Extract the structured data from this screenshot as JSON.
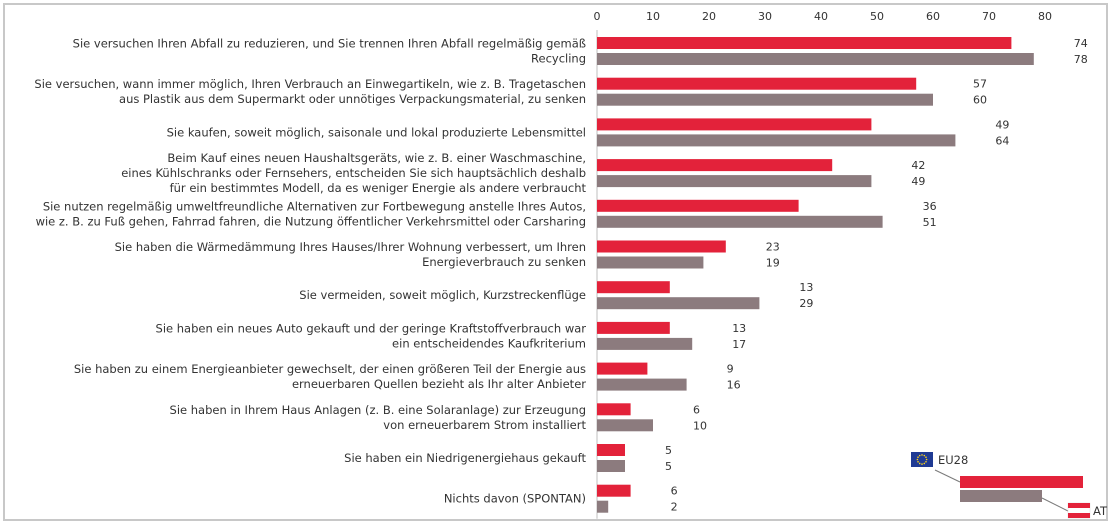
{
  "chart_data": {
    "type": "bar",
    "orientation": "horizontal",
    "xlim": [
      0,
      80
    ],
    "xticks": [
      0,
      10,
      20,
      30,
      40,
      50,
      60,
      70,
      80
    ],
    "grid": false,
    "series": [
      {
        "name": "EU28",
        "color": "#e3223a"
      },
      {
        "name": "AT",
        "color": "#8c7b7e"
      }
    ],
    "categories": [
      {
        "lines": [
          "Sie versuchen Ihren Abfall zu reduzieren, und Sie trennen Ihren Abfall regelmäßig gemäß",
          "Recycling"
        ],
        "values": [
          74,
          78
        ]
      },
      {
        "lines": [
          "Sie versuchen, wann immer möglich, Ihren Verbrauch an Einwegartikeln, wie z. B. Tragetaschen",
          "aus Plastik aus dem Supermarkt oder unnötiges Verpackungsmaterial, zu senken"
        ],
        "values": [
          57,
          60
        ]
      },
      {
        "lines": [
          "Sie kaufen, soweit möglich, saisonale und lokal produzierte Lebensmittel"
        ],
        "values": [
          49,
          64
        ]
      },
      {
        "lines": [
          "Beim Kauf eines neuen Haushaltsgeräts, wie z. B. einer Waschmaschine,",
          "eines Kühlschranks oder Fernsehers, entscheiden Sie sich hauptsächlich deshalb",
          "für ein bestimmtes Modell, da es weniger Energie als andere verbraucht"
        ],
        "values": [
          42,
          49
        ]
      },
      {
        "lines": [
          "Sie nutzen regelmäßig umweltfreundliche Alternativen zur Fortbewegung anstelle Ihres Autos,",
          "wie z. B. zu Fuß gehen, Fahrrad fahren, die Nutzung öffentlicher Verkehrsmittel oder Carsharing"
        ],
        "values": [
          36,
          51
        ]
      },
      {
        "lines": [
          "Sie haben die Wärmedämmung Ihres Hauses/Ihrer Wohnung verbessert, um Ihren",
          "Energieverbrauch zu senken"
        ],
        "values": [
          23,
          19
        ]
      },
      {
        "lines": [
          "Sie vermeiden, soweit möglich, Kurzstreckenflüge"
        ],
        "values": [
          13,
          29
        ]
      },
      {
        "lines": [
          "Sie haben ein neues Auto gekauft und der geringe Kraftstoffverbrauch war",
          "ein entscheidendes Kaufkriterium"
        ],
        "values": [
          13,
          17
        ]
      },
      {
        "lines": [
          "Sie haben zu einem Energieanbieter gewechselt, der einen größeren Teil der Energie aus",
          "erneuerbaren Quellen bezieht als Ihr alter Anbieter"
        ],
        "values": [
          9,
          16
        ]
      },
      {
        "lines": [
          "Sie haben in Ihrem Haus Anlagen (z. B. eine Solaranlage) zur Erzeugung",
          "von erneuerbarem Strom installiert"
        ],
        "values": [
          6,
          10
        ]
      },
      {
        "lines": [
          "Sie haben ein Niedrigenergiehaus gekauft"
        ],
        "values": [
          5,
          5
        ]
      },
      {
        "lines": [
          "Nichts davon (SPONTAN)"
        ],
        "values": [
          6,
          2
        ]
      }
    ],
    "legend": {
      "position": "bottom-right",
      "entries": [
        {
          "label": "EU28",
          "icon": "eu-flag-icon"
        },
        {
          "label": "AT",
          "icon": "austria-flag-icon"
        }
      ]
    }
  }
}
